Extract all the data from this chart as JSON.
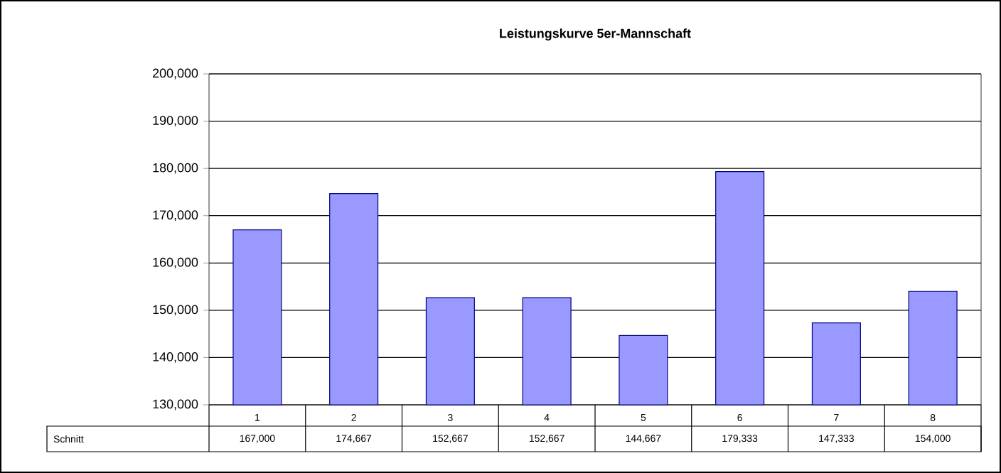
{
  "chart_data": {
    "type": "bar",
    "title": "Leistungskurve 5er-Mannschaft",
    "categories": [
      "1",
      "2",
      "3",
      "4",
      "5",
      "6",
      "7",
      "8"
    ],
    "series": [
      {
        "name": "Schnitt",
        "color": "#9999ff",
        "values": [
          167000,
          174667,
          152667,
          152667,
          144667,
          179333,
          147333,
          154000
        ],
        "value_labels": [
          "167,000",
          "174,667",
          "152,667",
          "152,667",
          "144,667",
          "179,333",
          "147,333",
          "154,000"
        ]
      }
    ],
    "ylim": [
      130000,
      200000
    ],
    "yticks": [
      {
        "value": 130000,
        "label": "130,000"
      },
      {
        "value": 140000,
        "label": "140,000"
      },
      {
        "value": 150000,
        "label": "150,000"
      },
      {
        "value": 160000,
        "label": "160,000"
      },
      {
        "value": 170000,
        "label": "170,000"
      },
      {
        "value": 180000,
        "label": "180,000"
      },
      {
        "value": 190000,
        "label": "190,000"
      },
      {
        "value": 200000,
        "label": "200,000"
      }
    ],
    "grid": "y"
  }
}
